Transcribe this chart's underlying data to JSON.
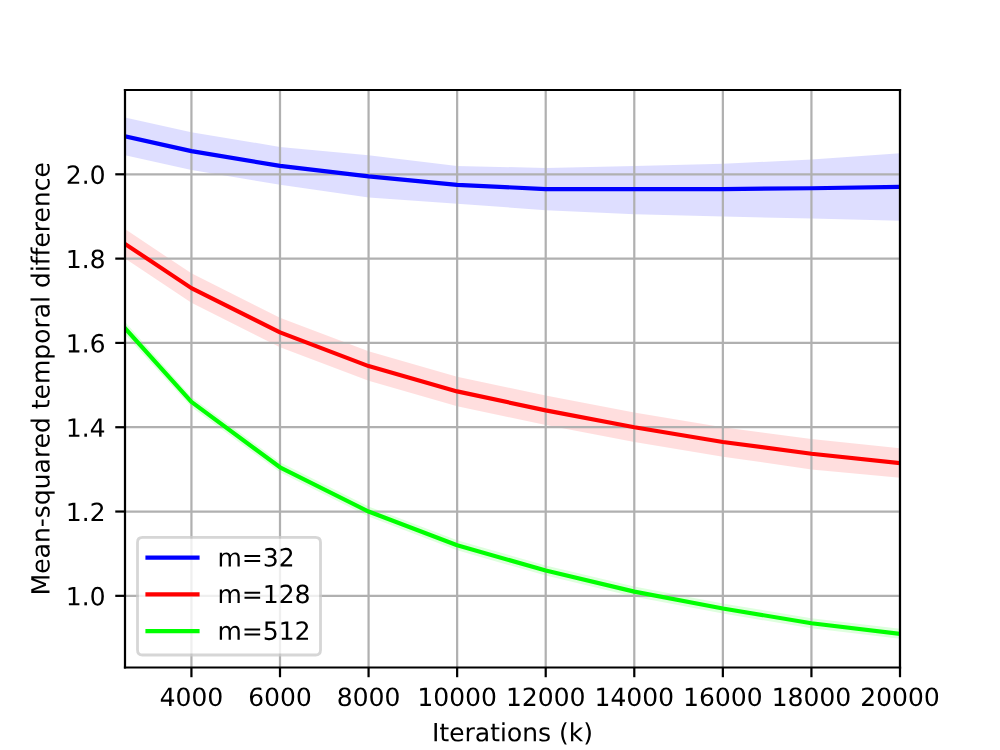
{
  "chart_data": {
    "type": "line",
    "xlabel": "Iterations (k)",
    "ylabel": "Mean-squared temporal difference",
    "x": [
      2500,
      4000,
      6000,
      8000,
      10000,
      12000,
      14000,
      16000,
      18000,
      20000
    ],
    "xlim": [
      2500,
      20000
    ],
    "xticks": [
      4000,
      6000,
      8000,
      10000,
      12000,
      14000,
      16000,
      18000,
      20000
    ],
    "ylim": [
      0.83,
      2.2
    ],
    "yticks": [
      {
        "value": 1.0,
        "label": "1.0"
      },
      1.2,
      1.4,
      1.6,
      1.8,
      {
        "value": 2.0,
        "label": "2.0"
      }
    ],
    "grid": true,
    "legend": "bottom left",
    "line_style": "solid",
    "marker": "none",
    "series": [
      {
        "name": "m=32",
        "color": "#0000ff",
        "values": [
          2.09,
          2.055,
          2.02,
          1.995,
          1.975,
          1.965,
          1.965,
          1.965,
          1.967,
          1.97
        ],
        "lower": [
          2.045,
          2.01,
          1.975,
          1.945,
          1.93,
          1.915,
          1.905,
          1.9,
          1.895,
          1.89
        ],
        "upper": [
          2.135,
          2.1,
          2.065,
          2.045,
          2.02,
          2.015,
          2.02,
          2.025,
          2.035,
          2.05
        ]
      },
      {
        "name": "m=128",
        "color": "#ff0000",
        "values": [
          1.835,
          1.73,
          1.625,
          1.545,
          1.485,
          1.44,
          1.4,
          1.365,
          1.337,
          1.315
        ],
        "lower": [
          1.8,
          1.695,
          1.59,
          1.51,
          1.45,
          1.405,
          1.365,
          1.33,
          1.3,
          1.28
        ],
        "upper": [
          1.87,
          1.765,
          1.66,
          1.58,
          1.52,
          1.475,
          1.435,
          1.4,
          1.372,
          1.35
        ]
      },
      {
        "name": "m=512",
        "color": "#00ff00",
        "values": [
          1.635,
          1.46,
          1.305,
          1.2,
          1.12,
          1.06,
          1.01,
          0.97,
          0.935,
          0.91
        ],
        "lower": [
          1.62,
          1.448,
          1.293,
          1.188,
          1.108,
          1.048,
          0.998,
          0.958,
          0.923,
          0.898
        ],
        "upper": [
          1.65,
          1.472,
          1.317,
          1.212,
          1.132,
          1.072,
          1.022,
          0.982,
          0.947,
          0.922
        ]
      }
    ]
  }
}
